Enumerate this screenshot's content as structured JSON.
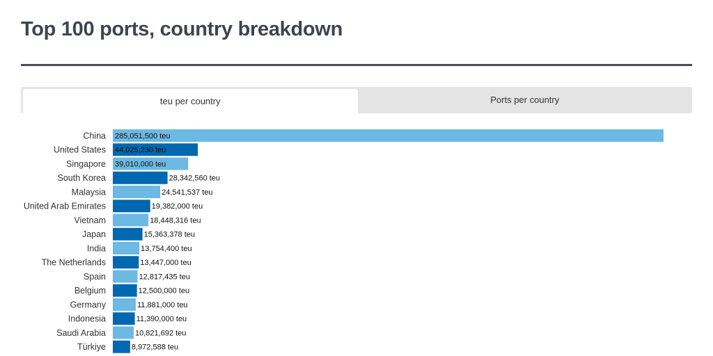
{
  "header": {
    "title": "Top 100 ports, country breakdown"
  },
  "tabs": [
    {
      "label": "teu per country",
      "active": true
    },
    {
      "label": "Ports per country",
      "active": false
    }
  ],
  "chart_data": {
    "type": "bar",
    "orientation": "horizontal",
    "categories": [
      "China",
      "United States",
      "Singapore",
      "South Korea",
      "Malaysia",
      "United Arab Emirates",
      "Vietnam",
      "Japan",
      "India",
      "The Netherlands",
      "Spain",
      "Belgium",
      "Germany",
      "Indonesia",
      "Saudi Arabia",
      "Türkiye"
    ],
    "values": [
      285051500,
      44025230,
      39010000,
      28342560,
      24541537,
      19382000,
      18448316,
      15363378,
      13754400,
      13447000,
      12817435,
      12500000,
      11881000,
      11390000,
      10821692,
      8972588
    ],
    "value_labels": [
      "285,051,500 teu",
      "44,025,230 teu",
      "39,010,000 teu",
      "28,342,560 teu",
      "24,541,537 teu",
      "19,382,000 teu",
      "18,448,316 teu",
      "15,363,378 teu",
      "13,754,400 teu",
      "13,447,000 teu",
      "12,817,435 teu",
      "12,500,000 teu",
      "11,881,000 teu",
      "11,390,000 teu",
      "10,821,692 teu",
      "8,972,588 teu"
    ],
    "colors": [
      "#6cb9e3",
      "#0068b0"
    ],
    "xlim": [
      0,
      285051500
    ]
  }
}
